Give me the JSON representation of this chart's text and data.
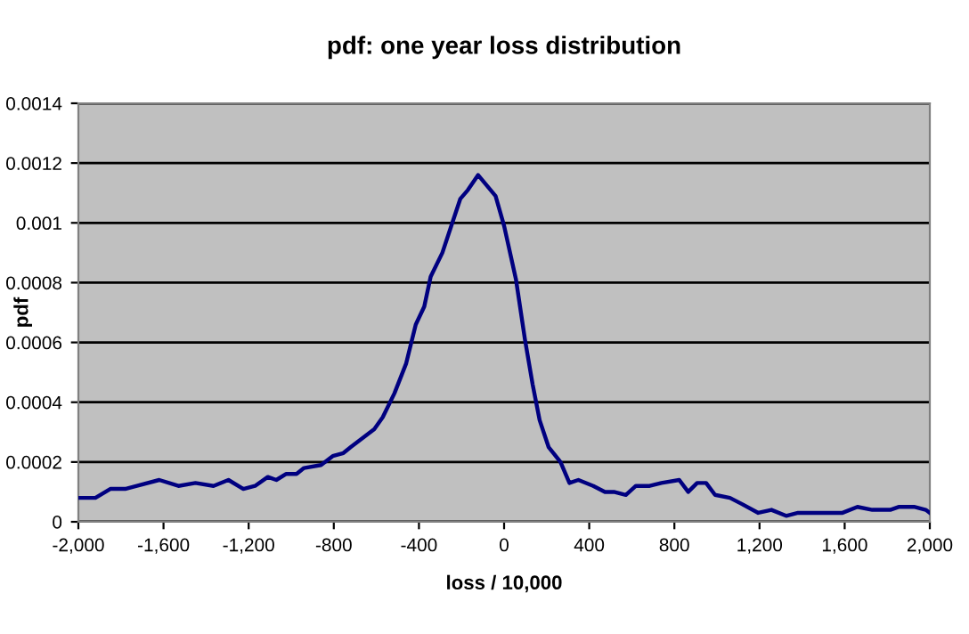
{
  "chart_data": {
    "type": "line",
    "title": "pdf: one year loss distribution",
    "xlabel": "loss / 10,000",
    "ylabel": "pdf",
    "xlim": [
      -2000,
      2000
    ],
    "ylim": [
      0,
      0.0014
    ],
    "xticks": [
      {
        "value": -2000,
        "label": "-2,000"
      },
      {
        "value": -1600,
        "label": "-1,600"
      },
      {
        "value": -1200,
        "label": "-1,200"
      },
      {
        "value": -800,
        "label": "-800"
      },
      {
        "value": -400,
        "label": "-400"
      },
      {
        "value": 0,
        "label": "0"
      },
      {
        "value": 400,
        "label": "400"
      },
      {
        "value": 800,
        "label": "800"
      },
      {
        "value": 1200,
        "label": "1,200"
      },
      {
        "value": 1600,
        "label": "1,600"
      },
      {
        "value": 2000,
        "label": "2,000"
      }
    ],
    "yticks": [
      0,
      0.0002,
      0.0004,
      0.0006,
      0.0008,
      0.001,
      0.0012,
      0.0014
    ],
    "grid": "y",
    "legend": false,
    "marker": "none",
    "line_style": "solid",
    "series": [
      {
        "color": "#000080",
        "x": [
          -2000,
          -1920,
          -1850,
          -1780,
          -1725,
          -1620,
          -1530,
          -1450,
          -1365,
          -1295,
          -1225,
          -1170,
          -1110,
          -1070,
          -1025,
          -975,
          -940,
          -860,
          -805,
          -755,
          -720,
          -665,
          -610,
          -570,
          -515,
          -460,
          -415,
          -375,
          -345,
          -290,
          -206,
          -170,
          -122,
          -40,
          0,
          56,
          98,
          134,
          167,
          209,
          265,
          307,
          349,
          419,
          474,
          516,
          572,
          619,
          684,
          739,
          823,
          865,
          907,
          949,
          991,
          1061,
          1116,
          1194,
          1256,
          1325,
          1381,
          1423,
          1507,
          1590,
          1660,
          1730,
          1814,
          1856,
          1926,
          1981,
          2000
        ],
        "values": [
          8e-05,
          8e-05,
          0.00011,
          0.00011,
          0.00012,
          0.00014,
          0.00012,
          0.00013,
          0.00012,
          0.00014,
          0.00011,
          0.00012,
          0.00015,
          0.00014,
          0.00016,
          0.00016,
          0.00018,
          0.00019,
          0.00022,
          0.00023,
          0.00025,
          0.00028,
          0.00031,
          0.00035,
          0.00043,
          0.00053,
          0.00066,
          0.00072,
          0.00082,
          0.0009,
          0.00108,
          0.00111,
          0.00116,
          0.00109,
          0.00099,
          0.00081,
          0.00061,
          0.00046,
          0.00034,
          0.00025,
          0.0002,
          0.00013,
          0.00014,
          0.00012,
          0.0001,
          0.0001,
          9e-05,
          0.00012,
          0.00012,
          0.00013,
          0.00014,
          0.0001,
          0.00013,
          0.00013,
          9e-05,
          8e-05,
          6e-05,
          3e-05,
          4e-05,
          2e-05,
          3e-05,
          3e-05,
          3e-05,
          3e-05,
          5e-05,
          4e-05,
          4e-05,
          5e-05,
          5e-05,
          4e-05,
          3e-05
        ]
      }
    ]
  }
}
